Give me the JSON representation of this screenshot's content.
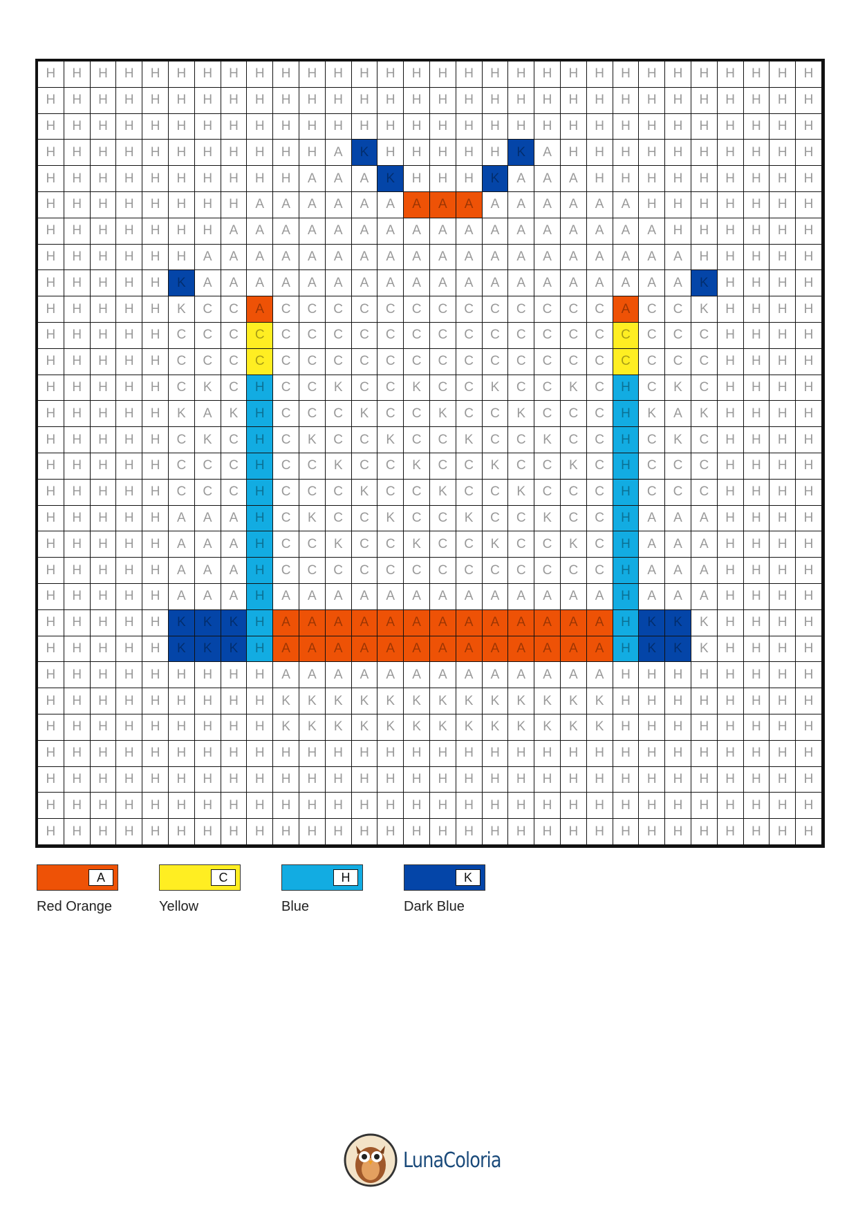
{
  "palette": {
    "A": {
      "name": "Red Orange",
      "color": "#EE5206"
    },
    "C": {
      "name": "Yellow",
      "color": "#FFEE22"
    },
    "H": {
      "name": "Blue",
      "color": "#12ACE2"
    },
    "K": {
      "name": "Dark Blue",
      "color": "#0445A8"
    }
  },
  "legend": [
    {
      "code": "A",
      "label": "Red Orange"
    },
    {
      "code": "C",
      "label": "Yellow"
    },
    {
      "code": "H",
      "label": "Blue"
    },
    {
      "code": "K",
      "label": "Dark Blue"
    }
  ],
  "grid": [
    "HHHHHHHHHHHHHHHHHHHHHHHHHHHHHH",
    "HHHHHHHHHHHHHHHHHHHHHHHHHHHHHH",
    "HHHHHHHHHHHHHHHHHHHHHHHHHHHHHH",
    "HHHHHHHHHHHAKHHHHHKAHHHHHHHHHH",
    "HHHHHHHHHHAAAKHHHKAAAHHHHHHHHH",
    "HHHHHHHHAAAAAAAAAAAAAAAHHHHHHH",
    "HHHHHHHAAAAAAAAAAAAAAAAAHHHHHH",
    "HHHHHHAAAAAAAAAAAAAAAAAAAHHHHH",
    "HHHHHKAAAAAAAAAAAAAAAAAAAKHHHH",
    "HHHHHKCCACCCCCCCCCCCCCACCKHHHH",
    "HHHHHCCCCCCCCCCCCCCCCCCCCCHHHH",
    "HHHHHCCCCCCCCCCCCCCCCCCCCCHHHH",
    "HHHHHCKCHCCKCCKCCKCCKCHCKCHHHH",
    "HHHHHKAKHCCCKCCKCCKCCCHKAKHHHH",
    "HHHHHCKCHCKCCKCCKCCKCCHCKCHHHH",
    "HHHHHCCCHCCKCCKCCKCCKCHCCCHHHH",
    "HHHHHCCCHCCCKCCKCCKCCCHCCCHHHH",
    "HHHHHAAAHCKCCKCCKCCKCCHAAAHHHH",
    "HHHHHAAAHCCKCCKCCKCCKCHAAAHHHH",
    "HHHHHAAAHCCCCCCCCCCCCCHAAAHHHH",
    "HHHHHAAAHAAAAAAAAAAAAAHAAAHHHH",
    "HHHHHKKKHAAAAAAAAAAAAAHKKKHHHH",
    "HHHHHKKKHAAAAAAAAAAAAAHKKKHHHH",
    "HHHHHHHHHAAAAAAAAAAAAAHHHHHHHH",
    "HHHHHHHHHKKKKKKKKKKKKKHHHHHHHH",
    "HHHHHHHHHKKKKKKKKKKKKKHHHHHHHH",
    "HHHHHHHHHHHHHHHHHHHHHHHHHHHHHH",
    "HHHHHHHHHHHHHHHHHHHHHHHHHHHHHH",
    "HHHHHHHHHHHHHHHHHHHHHHHHHHHHHH",
    "HHHHHHHHHHHHHHHHHHHHHHHHHHHHHH"
  ],
  "colored": [
    "..............................",
    "..............................",
    "..............................",
    "............#.....#...........",
    ".............#...#............",
    "..............###.............",
    "..............................",
    "..............................",
    ".....#...................#....",
    "........#.............#.......",
    "........#.............#.......",
    "........#.............#.......",
    "........#.............#.......",
    "........#.............#.......",
    "........#.............#.......",
    "........#.............#.......",
    "........#.............#.......",
    "........#.............#.......",
    "........#.............#.......",
    "........#.............#.......",
    "........#.............#.......",
    ".....####################.....",
    ".....####################.....",
    "..............................",
    "..............................",
    "..............................",
    "..............................",
    "..............................",
    "..............................",
    ".............................."
  ],
  "logo": {
    "text": "LunaColoria",
    "icon": "owl-icon"
  }
}
